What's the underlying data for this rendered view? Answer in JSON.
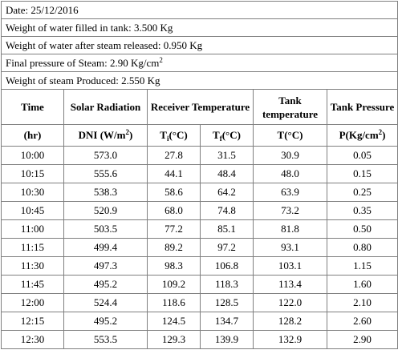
{
  "info": {
    "date": "Date: 25/12/2016",
    "water_filled": "Weight of water filled in tank: 3.500 Kg",
    "water_after": "Weight of water after steam released: 0.950 Kg",
    "final_pressure": "Final pressure of Steam: 2.90 Kg/cm²",
    "steam_produced": "Weight of steam Produced: 2.550 Kg"
  },
  "headers": {
    "time": "Time",
    "solar": "Solar Radiation",
    "receiver": "Receiver Temperature",
    "tank_temp": "Tank temperature",
    "tank_pressure": "Tank Pressure"
  },
  "units": {
    "time": "(hr)",
    "dni": "DNI (W/m²)",
    "ti": "Ti(°C)",
    "tf": "Tf(°C)",
    "t": "T(°C)",
    "p": "P(Kg/cm²)"
  },
  "rows": [
    [
      "10:00",
      "573.0",
      "27.8",
      "31.5",
      "30.9",
      "0.05"
    ],
    [
      "10:15",
      "555.6",
      "44.1",
      "48.4",
      "48.0",
      "0.15"
    ],
    [
      "10:30",
      "538.3",
      "58.6",
      "64.2",
      "63.9",
      "0.25"
    ],
    [
      "10:45",
      "520.9",
      "68.0",
      "74.8",
      "73.2",
      "0.35"
    ],
    [
      "11:00",
      "503.5",
      "77.2",
      "85.1",
      "81.8",
      "0.50"
    ],
    [
      "11:15",
      "499.4",
      "89.2",
      "97.2",
      "93.1",
      "0.80"
    ],
    [
      "11:30",
      "497.3",
      "98.3",
      "106.8",
      "103.1",
      "1.15"
    ],
    [
      "11:45",
      "495.2",
      "109.2",
      "118.3",
      "113.4",
      "1.60"
    ],
    [
      "12:00",
      "524.4",
      "118.6",
      "128.5",
      "122.0",
      "2.10"
    ],
    [
      "12:15",
      "495.2",
      "124.5",
      "134.7",
      "128.2",
      "2.60"
    ],
    [
      "12:30",
      "553.5",
      "129.3",
      "139.9",
      "132.9",
      "2.90"
    ]
  ]
}
